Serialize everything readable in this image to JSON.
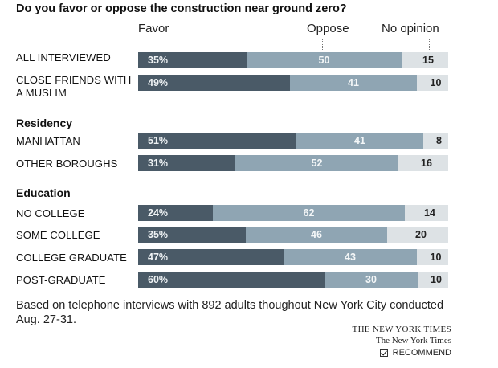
{
  "title": "Do you favor or oppose the construction near ground zero?",
  "columns": {
    "favor": "Favor",
    "oppose": "Oppose",
    "no_opinion": "No opinion"
  },
  "note": "Based on telephone interviews with 892 adults thoughout New York City conducted Aug. 27-31.",
  "brand": {
    "line1": "THE NEW YORK TIMES",
    "line2": "The New York Times"
  },
  "recommend_label": "RECOMMEND",
  "colors": {
    "favor": "#4a5a67",
    "oppose": "#8fa5b3",
    "no_opinion": "#dde2e5"
  },
  "chart_data": {
    "type": "bar",
    "stacked": true,
    "orientation": "horizontal",
    "title": "Do you favor or oppose the construction near ground zero?",
    "series": [
      {
        "name": "Favor",
        "key": "favor"
      },
      {
        "name": "Oppose",
        "key": "oppose"
      },
      {
        "name": "No opinion",
        "key": "no_opinion"
      }
    ],
    "groups": [
      {
        "heading": "",
        "rows": [
          {
            "label": "ALL INTERVIEWED",
            "favor": 35,
            "oppose": 50,
            "no_opinion": 15,
            "favor_label": "35%",
            "oppose_label": "50",
            "no_opinion_label": "15"
          },
          {
            "label": "CLOSE FRIENDS WITH A MUSLIM",
            "favor": 49,
            "oppose": 41,
            "no_opinion": 10,
            "favor_label": "49%",
            "oppose_label": "41",
            "no_opinion_label": "10"
          }
        ]
      },
      {
        "heading": "Residency",
        "rows": [
          {
            "label": "MANHATTAN",
            "favor": 51,
            "oppose": 41,
            "no_opinion": 8,
            "favor_label": "51%",
            "oppose_label": "41",
            "no_opinion_label": "8"
          },
          {
            "label": "OTHER BOROUGHS",
            "favor": 31,
            "oppose": 52,
            "no_opinion": 16,
            "favor_label": "31%",
            "oppose_label": "52",
            "no_opinion_label": "16"
          }
        ]
      },
      {
        "heading": "Education",
        "rows": [
          {
            "label": "NO COLLEGE",
            "favor": 24,
            "oppose": 62,
            "no_opinion": 14,
            "favor_label": "24%",
            "oppose_label": "62",
            "no_opinion_label": "14"
          },
          {
            "label": "SOME COLLEGE",
            "favor": 35,
            "oppose": 46,
            "no_opinion": 20,
            "favor_label": "35%",
            "oppose_label": "46",
            "no_opinion_label": "20"
          },
          {
            "label": "COLLEGE GRADUATE",
            "favor": 47,
            "oppose": 43,
            "no_opinion": 10,
            "favor_label": "47%",
            "oppose_label": "43",
            "no_opinion_label": "10"
          },
          {
            "label": "POST-GRADUATE",
            "favor": 60,
            "oppose": 30,
            "no_opinion": 10,
            "favor_label": "60%",
            "oppose_label": "30",
            "no_opinion_label": "10"
          }
        ]
      }
    ]
  }
}
